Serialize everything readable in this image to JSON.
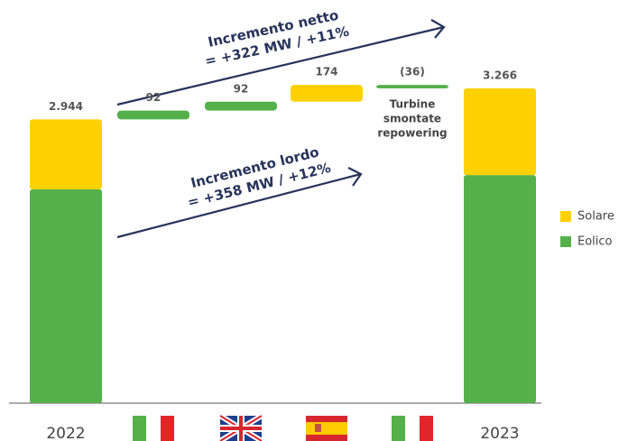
{
  "chart_data": {
    "type": "waterfall",
    "categories": [
      "2022",
      null,
      null,
      null,
      null,
      "2023"
    ],
    "series": [
      {
        "name": "Eolico",
        "color": "#54b04a",
        "values": [
          2219,
          92,
          92,
          null,
          -36,
          2367
        ]
      },
      {
        "name": "Solare",
        "color": "#ffd100",
        "values": [
          725,
          null,
          null,
          174,
          null,
          899
        ]
      }
    ],
    "totals": [
      2944,
      92,
      92,
      174,
      -36,
      3266
    ],
    "value_labels": [
      "2.944",
      "92",
      "92",
      "174",
      "(36)",
      "3.266"
    ],
    "ylim": [
      0,
      3500
    ],
    "annotations": {
      "netto": [
        "Incremento netto",
        "= +322 MW / +11%"
      ],
      "lordo": [
        "Incremento lordo",
        "= +358 MW / +12%"
      ],
      "turbine": [
        "Turbine",
        "smontate",
        "repowering"
      ]
    }
  }
}
